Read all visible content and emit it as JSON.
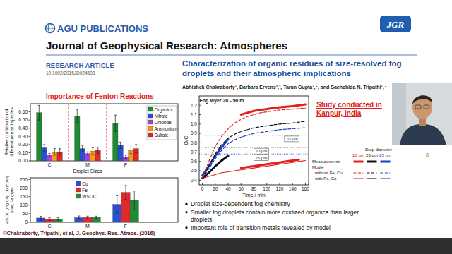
{
  "header": {
    "publisher": "AGU PUBLICATIONS",
    "journal_logo": "JGR",
    "journal": "Journal of Geophysical Research: Atmospheres",
    "article_type": "RESEARCH ARTICLE",
    "doi": "10.1002/2015JD024508",
    "title": "Characterization of organic residues of size-resolved fog droplets and their atmospheric implications",
    "authors": "Abhishek Chakraborty¹, Barbara Ervens²,³, Tarun Gupta¹,⁴, and Sachchida N. Tripathi¹,⁴"
  },
  "slide": {
    "heading": "Importance of Fenton Reactions",
    "note": "Study conducted in Kanpur, India",
    "bullets": [
      "Droplet size-dependent fog chemistry",
      "Smaller fog droplets contain more oxidized organics than larger droplets",
      "Important role of transition metals revealed by model"
    ],
    "citation": "©Chakraborty, Tripathi, et al, J. Geophys. Res. Atmos. (2016)",
    "page": "8"
  },
  "chart_data": [
    {
      "type": "bar",
      "y_label": "Relative contribution of different aerosol species",
      "x_label": "Droplet Sizes",
      "categories": [
        "C",
        "M",
        "F"
      ],
      "series": [
        {
          "name": "Organics",
          "color": "#1e8c34",
          "values": [
            0.59,
            0.55,
            0.46
          ],
          "errors": [
            0.09,
            0.08,
            0.1
          ]
        },
        {
          "name": "Nitrate",
          "color": "#2a4fd0",
          "values": [
            0.16,
            0.15,
            0.19
          ],
          "errors": [
            0.04,
            0.04,
            0.04
          ]
        },
        {
          "name": "Chloride",
          "color": "#b040d0",
          "values": [
            0.07,
            0.09,
            0.05
          ],
          "errors": [
            0.02,
            0.02,
            0.02
          ]
        },
        {
          "name": "Ammonium",
          "color": "#f39a1e",
          "values": [
            0.11,
            0.12,
            0.13
          ],
          "errors": [
            0.04,
            0.04,
            0.04
          ]
        },
        {
          "name": "Sulfate",
          "color": "#e02a2a",
          "values": [
            0.11,
            0.13,
            0.15
          ],
          "errors": [
            0.04,
            0.04,
            0.05
          ]
        }
      ],
      "ylim": [
        0,
        0.7
      ],
      "yticks": [
        {
          "value": 0,
          "label": "0.00"
        },
        {
          "value": 0.1,
          "label": "0.10"
        },
        {
          "value": 0.2,
          "label": "0.20"
        },
        {
          "value": 0.3,
          "label": "0.30"
        },
        {
          "value": 0.4,
          "label": "0.40"
        },
        {
          "value": 0.5,
          "label": "0.50"
        },
        {
          "value": 0.6,
          "label": "0.60"
        }
      ],
      "legend": "top-right",
      "grid": false
    },
    {
      "type": "bar",
      "y_label": "WSOC (mg C/l), Cu (*100) ppm, Fe (ppb)",
      "categories": [
        "C",
        "M",
        "F"
      ],
      "series": [
        {
          "name": "Cu",
          "color": "#2a4fd0",
          "values": [
            25,
            27,
            105
          ],
          "errors": [
            10,
            10,
            50
          ]
        },
        {
          "name": "Fe",
          "color": "#e02a2a",
          "values": [
            18,
            28,
            175
          ],
          "errors": [
            8,
            8,
            40
          ]
        },
        {
          "name": "WSOC",
          "color": "#1e8c34",
          "values": [
            20,
            28,
            128
          ],
          "errors": [
            8,
            8,
            55
          ]
        }
      ],
      "ylim": [
        0,
        260
      ],
      "yticks": [
        0,
        50,
        100,
        150,
        200,
        250
      ],
      "legend": "top",
      "grid": false
    },
    {
      "type": "line",
      "x_label": "Time / min",
      "y_label": "O/C",
      "annotation": "Fog layer 20 - 50 m",
      "x": [
        0,
        10,
        20,
        30,
        40,
        50,
        60,
        70,
        80,
        90,
        100,
        110,
        120,
        130,
        140,
        150,
        160
      ],
      "series": [
        {
          "color": "#e0201c",
          "line_style": "thick",
          "values": [
            null,
            null,
            null,
            null,
            null,
            null,
            1.1,
            1.12,
            1.14,
            1.15,
            1.16,
            1.17,
            1.18,
            1.185,
            1.19,
            1.2,
            1.21
          ]
        },
        {
          "color": "#1c3fbf",
          "line_style": "thick",
          "values": [
            0.45,
            0.55,
            0.66,
            0.75,
            0.84,
            null,
            null,
            null,
            null,
            null,
            null,
            null,
            null,
            null,
            null,
            null,
            null
          ]
        },
        {
          "color": "#111111",
          "line_style": "thick",
          "values": [
            0.42,
            0.48,
            0.55,
            0.61,
            0.66,
            null,
            null,
            null,
            null,
            null,
            null,
            null,
            null,
            null,
            null,
            null,
            null
          ]
        },
        {
          "color": "#e0201c",
          "line_style": "thick",
          "values": [
            null,
            null,
            null,
            null,
            null,
            null,
            0.53,
            0.54,
            0.55,
            0.56,
            0.57,
            0.58,
            0.59,
            0.6,
            0.61,
            0.62,
            null
          ]
        },
        {
          "color": "#e0201c",
          "line_style": "dashed",
          "values": [
            0.42,
            0.6,
            0.76,
            0.87,
            0.95,
            1.01,
            1.05,
            1.08,
            1.1,
            1.12,
            1.13,
            1.14,
            1.15,
            1.155,
            1.16,
            1.165,
            1.17
          ]
        },
        {
          "color": "#111111",
          "line_style": "dashed",
          "values": [
            0.42,
            0.55,
            0.68,
            0.78,
            0.85,
            0.89,
            0.92,
            0.94,
            0.96,
            0.97,
            0.98,
            0.99,
            1.0,
            1.005,
            1.01,
            1.02,
            1.03
          ]
        },
        {
          "color": "#1c3fbf",
          "line_style": "dashed",
          "values": [
            0.42,
            0.52,
            0.63,
            0.72,
            0.79,
            0.83,
            0.86,
            0.88,
            0.9,
            0.91,
            0.92,
            0.93,
            0.94,
            0.945,
            0.95,
            0.955,
            0.96
          ]
        },
        {
          "color": "#e0201c",
          "line_style": "solid",
          "values": [
            0.42,
            0.44,
            0.46,
            0.48,
            0.49,
            0.5,
            0.51,
            0.52,
            0.53,
            0.54,
            0.55,
            0.56,
            0.57,
            0.58,
            0.59,
            0.6,
            0.61
          ]
        }
      ],
      "reference_lines": [
        {
          "value": 0.88,
          "color": "#e0201c",
          "label": "10 µm"
        },
        {
          "value": 0.75,
          "color": "#111111",
          "label": "20 µm"
        },
        {
          "value": 0.68,
          "color": "#1c3fbf",
          "label": "25 µm"
        }
      ],
      "legend_table": {
        "title": "Drop diameter",
        "columns": [
          "10 µm",
          "20 µm",
          "25 µm"
        ],
        "colors": [
          "#e0201c",
          "#111111",
          "#1c3fbf"
        ],
        "rows": [
          {
            "label": "Measurements",
            "line_style": "thick"
          },
          {
            "label": "Model"
          },
          {
            "label": "without Fe, Cu",
            "line_style": "dashed"
          },
          {
            "label": "with Fe, Cu",
            "line_style": "solid"
          }
        ]
      },
      "xlim": [
        -5,
        165
      ],
      "xticks": [
        0,
        20,
        40,
        60,
        80,
        100,
        120,
        140,
        160
      ],
      "ylim": [
        0.35,
        1.3
      ],
      "yticks": [
        0.4,
        0.5,
        0.6,
        0.7,
        0.8,
        0.9,
        {
          "value": 1,
          "label": "1.0"
        },
        1.1,
        1.2
      ],
      "grid": false
    }
  ]
}
